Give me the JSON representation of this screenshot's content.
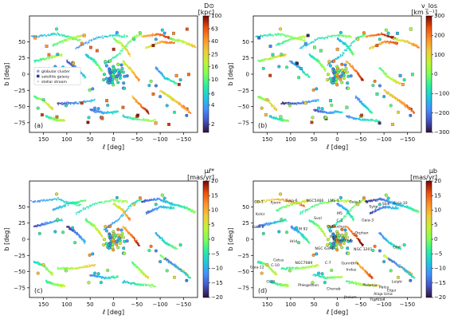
{
  "chart_data": [
    {
      "type": "scatter",
      "panel": "(a)",
      "xlabel": "ℓ [deg]",
      "ylabel": "b [deg]",
      "xticks": [
        150,
        100,
        50,
        0,
        -50,
        -100,
        -150
      ],
      "yticks": [
        50,
        25,
        0,
        -25,
        -50,
        -75
      ],
      "xlim": [
        180,
        -180
      ],
      "ylim": [
        -90,
        90
      ],
      "colorbar": {
        "title": "D⊙",
        "unit": "[kpc]",
        "scale": "log",
        "ticks": [
          100,
          63,
          40,
          25,
          16,
          10,
          6,
          4,
          2
        ],
        "range": [
          1.5,
          100
        ],
        "colormap": "turbo"
      },
      "legend": {
        "placement": "center-left",
        "entries": [
          {
            "label": "globular cluster",
            "marker": "circle",
            "color": "#8aa8d8"
          },
          {
            "label": "satellite galaxy",
            "marker": "square",
            "color": "#2a3aa8"
          },
          {
            "label": "stellar stream",
            "marker": "dot",
            "color": "#9fd080"
          }
        ]
      }
    },
    {
      "type": "scatter",
      "panel": "(b)",
      "xlabel": "ℓ [deg]",
      "ylabel": "b [deg]",
      "xticks": [
        150,
        100,
        50,
        0,
        -50,
        -100,
        -150
      ],
      "yticks": [
        50,
        25,
        0,
        -25,
        -50,
        -75
      ],
      "xlim": [
        180,
        -180
      ],
      "ylim": [
        -90,
        90
      ],
      "colorbar": {
        "title": "v_los",
        "unit": "[km s⁻¹]",
        "scale": "linear",
        "ticks": [
          300,
          200,
          100,
          0,
          -100,
          -200,
          -300
        ],
        "range": [
          -300,
          300
        ],
        "colormap": "turbo"
      }
    },
    {
      "type": "scatter",
      "panel": "(c)",
      "xlabel": "ℓ [deg]",
      "ylabel": "b [deg]",
      "xticks": [
        150,
        100,
        50,
        0,
        -50,
        -100,
        -150
      ],
      "yticks": [
        50,
        25,
        0,
        -25,
        -50,
        -75
      ],
      "xlim": [
        180,
        -180
      ],
      "ylim": [
        -90,
        90
      ],
      "colorbar": {
        "title": "μℓ*",
        "unit": "[mas/yr]",
        "scale": "linear",
        "ticks": [
          20,
          15,
          10,
          5,
          0,
          -5,
          -10,
          -15,
          -20
        ],
        "range": [
          -20,
          20
        ],
        "colormap": "turbo"
      }
    },
    {
      "type": "scatter",
      "panel": "(d)",
      "xlabel": "ℓ [deg]",
      "ylabel": "b [deg]",
      "xticks": [
        150,
        100,
        50,
        0,
        -50,
        -100,
        -150
      ],
      "yticks": [
        50,
        25,
        0,
        -25,
        -50,
        -75
      ],
      "xlim": [
        180,
        -180
      ],
      "ylim": [
        -90,
        90
      ],
      "colorbar": {
        "title": "μb",
        "unit": "[mas/yr]",
        "scale": "linear",
        "ticks": [
          20,
          15,
          10,
          5,
          0,
          -5,
          -10,
          -15,
          -20
        ],
        "range": [
          -20,
          20
        ],
        "colormap": "turbo"
      },
      "stream_labels": [
        {
          "name": "GD-1",
          "l": 168,
          "b": 56
        },
        {
          "name": "Gaia-6",
          "l": 98,
          "b": 58
        },
        {
          "name": "Fjorm",
          "l": 132,
          "b": 55
        },
        {
          "name": "NGC5466",
          "l": 48,
          "b": 58
        },
        {
          "name": "LMS-1",
          "l": 8,
          "b": 58
        },
        {
          "name": "Gaia-1",
          "l": -38,
          "b": 56
        },
        {
          "name": "Sylgr",
          "l": -78,
          "b": 49
        },
        {
          "name": "Slidr",
          "l": -105,
          "b": 53
        },
        {
          "name": "Gaia-10",
          "l": -135,
          "b": 54
        },
        {
          "name": "Kshir",
          "l": 165,
          "b": 37
        },
        {
          "name": "Gaia-8",
          "l": 170,
          "b": 17
        },
        {
          "name": "Svol",
          "l": 42,
          "b": 31
        },
        {
          "name": "M5",
          "l": -5,
          "b": 38
        },
        {
          "name": "C-3",
          "l": -5,
          "b": 27
        },
        {
          "name": "Ophiuchus",
          "l": 2,
          "b": 18
        },
        {
          "name": "Pal5",
          "l": 8,
          "b": 2
        },
        {
          "name": "Gaia-3",
          "l": -65,
          "b": 28
        },
        {
          "name": "Orphan",
          "l": -52,
          "b": 8
        },
        {
          "name": "Fimbulthul",
          "l": -10,
          "b": -3
        },
        {
          "name": "M 92",
          "l": 73,
          "b": 14
        },
        {
          "name": "Hrid",
          "l": 94,
          "b": -5
        },
        {
          "name": "NGC 6397",
          "l": 28,
          "b": -16
        },
        {
          "name": "NGC 3201",
          "l": -55,
          "b": -17
        },
        {
          "name": "Gjoll",
          "l": -128,
          "b": -14
        },
        {
          "name": "Cetus",
          "l": 126,
          "b": -34
        },
        {
          "name": "C-10",
          "l": 133,
          "b": -42
        },
        {
          "name": "Gaia-12",
          "l": 172,
          "b": -45
        },
        {
          "name": "NGC7089",
          "l": 72,
          "b": -38
        },
        {
          "name": "C-7",
          "l": 20,
          "b": -38
        },
        {
          "name": "Gunnthra",
          "l": -27,
          "b": -39
        },
        {
          "name": "Indus",
          "l": -30,
          "b": -49
        },
        {
          "name": "C-20",
          "l": 143,
          "b": -67
        },
        {
          "name": "Phlegethon",
          "l": 62,
          "b": -73
        },
        {
          "name": "Chenab",
          "l": 8,
          "b": -78
        },
        {
          "name": "Leiptr",
          "l": -128,
          "b": -67
        },
        {
          "name": "Phoenix",
          "l": -70,
          "b": -73
        },
        {
          "name": "Palca",
          "l": -100,
          "b": -76
        },
        {
          "name": "Elqui",
          "l": -116,
          "b": -81
        },
        {
          "name": "Aliqa Uma",
          "l": -98,
          "b": -86
        },
        {
          "name": "Jhelum",
          "l": -28,
          "b": -91
        },
        {
          "name": "Atlas",
          "l": -92,
          "b": -95
        },
        {
          "name": "Ylgr",
          "l": -77,
          "b": -95
        }
      ]
    }
  ]
}
